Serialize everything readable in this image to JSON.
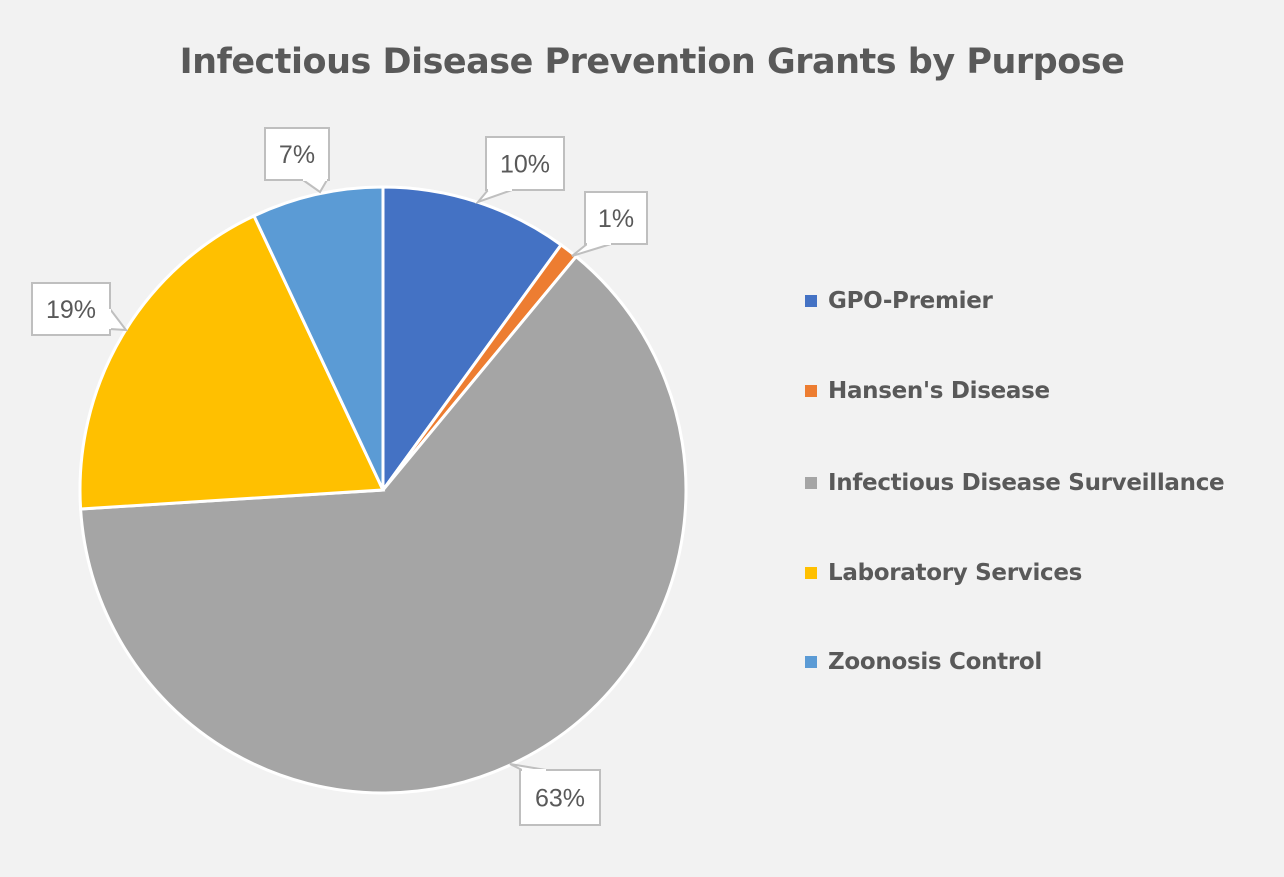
{
  "chart_data": {
    "type": "pie",
    "title": "Infectious Disease Prevention Grants by Purpose",
    "start_angle_deg": 0,
    "direction": "clockwise",
    "legend_position": "right",
    "slices": [
      {
        "name": "GPO-Premier",
        "value": 10,
        "label": "10%",
        "color": "#4472C4"
      },
      {
        "name": "Hansen's Disease",
        "value": 1,
        "label": "1%",
        "color": "#ED7D31"
      },
      {
        "name": "Infectious Disease Surveillance",
        "value": 63,
        "label": "63%",
        "color": "#A5A5A5"
      },
      {
        "name": "Laboratory Services",
        "value": 19,
        "label": "19%",
        "color": "#FFC000"
      },
      {
        "name": "Zoonosis Control",
        "value": 7,
        "label": "7%",
        "color": "#5B9BD5"
      }
    ]
  }
}
